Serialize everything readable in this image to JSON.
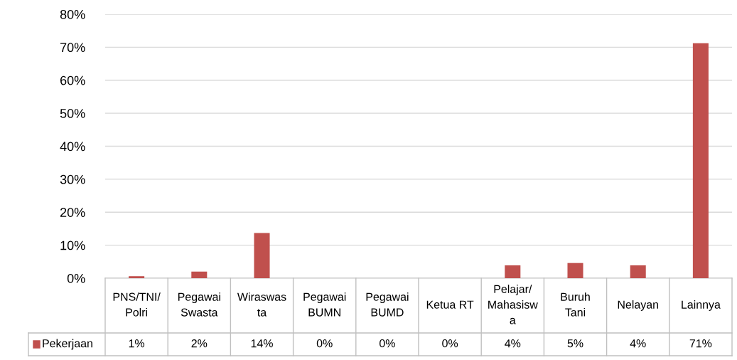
{
  "chart_data": {
    "type": "bar",
    "categories": [
      "PNS/TNI/\nPolri",
      "Pegawai\nSwasta",
      "Wiraswas\nta",
      "Pegawai\nBUMN",
      "Pegawai\nBUMD",
      "Ketua RT",
      "Pelajar/\nMahasisw\na",
      "Buruh\nTani",
      "Nelayan",
      "Lainnya"
    ],
    "series": [
      {
        "name": "Pekerjaan",
        "color": "#c0504d",
        "values": [
          0.6,
          2.0,
          13.7,
          0,
          0,
          0,
          3.9,
          4.6,
          3.9,
          71.2
        ],
        "value_labels": [
          "1%",
          "2%",
          "14%",
          "0%",
          "0%",
          "0%",
          "4%",
          "5%",
          "4%",
          "71%"
        ]
      }
    ],
    "ylim": [
      0,
      80
    ],
    "yticks": [
      {
        "value": 0,
        "label": "0%"
      },
      {
        "value": 10,
        "label": "10%"
      },
      {
        "value": 20,
        "label": "20%"
      },
      {
        "value": 30,
        "label": "30%"
      },
      {
        "value": 40,
        "label": "40%"
      },
      {
        "value": 50,
        "label": "50%"
      },
      {
        "value": 60,
        "label": "60%"
      },
      {
        "value": 70,
        "label": "70%"
      },
      {
        "value": 80,
        "label": "80%"
      }
    ],
    "grid": "y",
    "legend": "bottom left"
  }
}
